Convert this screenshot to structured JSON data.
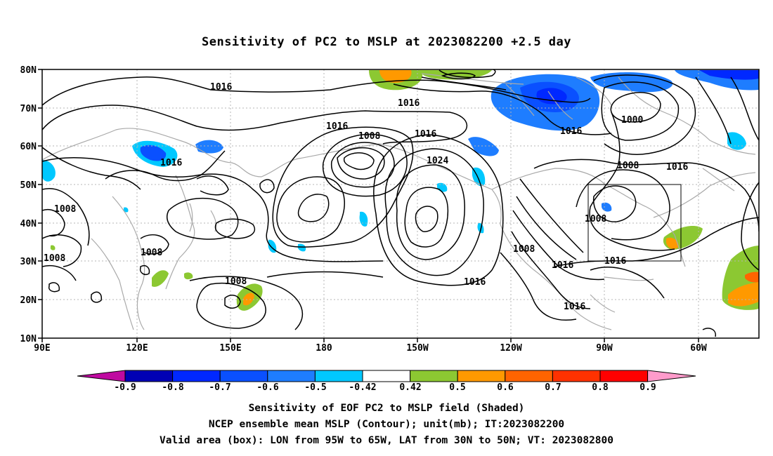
{
  "title": "Sensitivity of PC2 to MSLP at 2023082200 +2.5 day",
  "lat_labels": [
    "80N",
    "70N",
    "60N",
    "50N",
    "40N",
    "30N",
    "20N",
    "10N"
  ],
  "lon_labels": [
    "90E",
    "120E",
    "150E",
    "180",
    "150W",
    "120W",
    "90W",
    "60W"
  ],
  "contour_labels": [
    "1016",
    "1016",
    "1016",
    "1008",
    "1016",
    "1016",
    "1016",
    "1000",
    "1024",
    "1008",
    "1016",
    "1008",
    "1008",
    "1008",
    "1008",
    "1008",
    "1016",
    "1016",
    "1016",
    "1016"
  ],
  "colorbar": {
    "ticks": [
      "-0.9",
      "-0.8",
      "-0.7",
      "-0.6",
      "-0.5",
      "-0.42",
      "0.42",
      "0.5",
      "0.6",
      "0.7",
      "0.8",
      "0.9"
    ],
    "colors": [
      "#bf0aa0",
      "#0000b4",
      "#0028ff",
      "#0a50ff",
      "#1e7dff",
      "#00c8ff",
      "#ffffff",
      "#8cc832",
      "#ff9900",
      "#ff6400",
      "#ff3200",
      "#ff0000",
      "#ff9bcb"
    ]
  },
  "captions": [
    "Sensitivity of EOF PC2 to MSLP field (Shaded)",
    "NCEP ensemble mean MSLP (Contour); unit(mb); IT:2023082200",
    "Valid area (box): LON from 95W to 65W, LAT from 30N to 50N; VT: 2023082800"
  ]
}
